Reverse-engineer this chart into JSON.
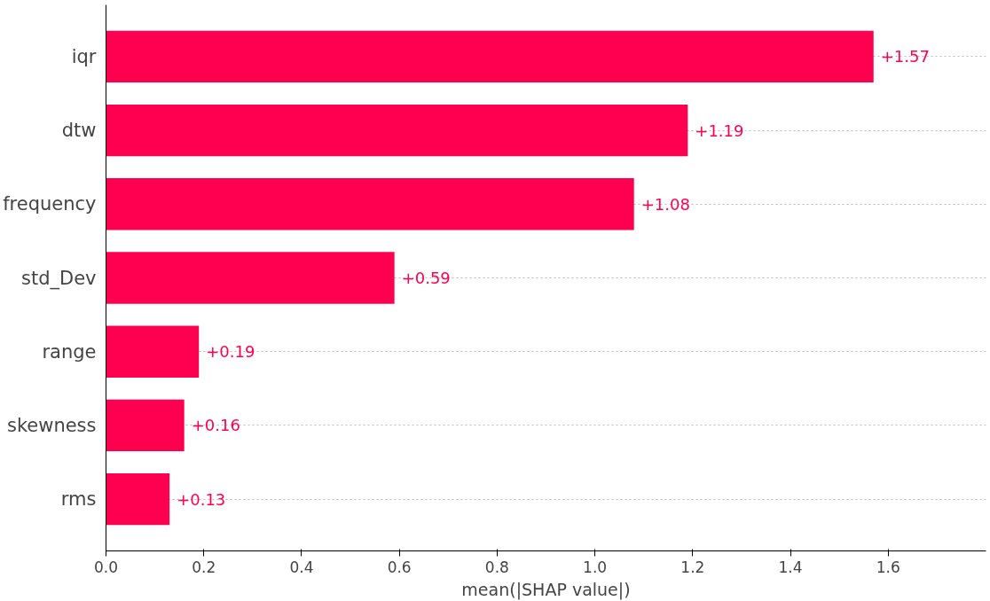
{
  "chart_data": {
    "type": "bar",
    "orientation": "horizontal",
    "xlabel": "mean(|SHAP value|)",
    "categories": [
      "iqr",
      "dtw",
      "frequency",
      "std_Dev",
      "range",
      "skewness",
      "rms"
    ],
    "values": [
      1.57,
      1.19,
      1.08,
      0.59,
      0.19,
      0.16,
      0.13
    ],
    "value_labels": [
      "+1.57",
      "+1.19",
      "+1.08",
      "+0.59",
      "+0.19",
      "+0.16",
      "+0.13"
    ],
    "color": "#ff0051",
    "xlim": [
      0,
      1.8
    ],
    "xticks": [
      {
        "value": 0,
        "label": "0.0"
      },
      0.2,
      0.4,
      0.6,
      0.8,
      {
        "value": 1,
        "label": "1.0"
      },
      1.2,
      1.4,
      1.6
    ],
    "grid": "y"
  }
}
